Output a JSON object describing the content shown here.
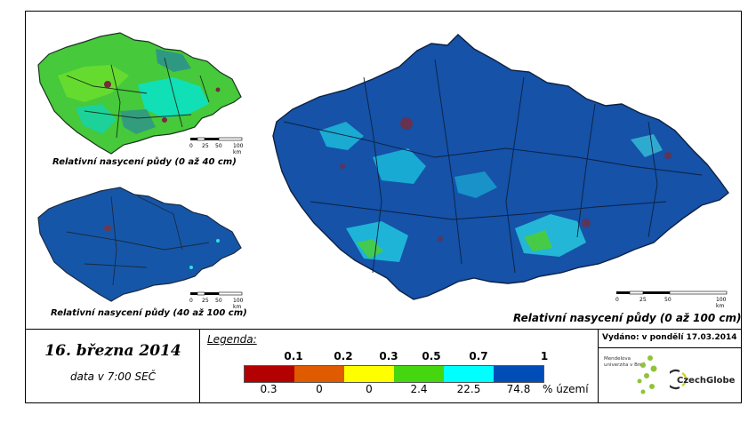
{
  "maps": {
    "small_top": {
      "caption": "Relativní nasycení půdy (0 až 40 cm)"
    },
    "small_bottom": {
      "caption": "Relativní nasycení půdy (40 až 100 cm)"
    },
    "large": {
      "caption": "Relativní nasycení půdy (0 až 100 cm)"
    },
    "scalebar": {
      "ticks": [
        "0",
        "25",
        "50",
        "100 km"
      ]
    }
  },
  "footer": {
    "date": "16. března 2014",
    "time": "data v 7:00 SEČ",
    "legend_title": "Legenda:",
    "legend_thresholds": [
      "0.1",
      "0.2",
      "0.3",
      "0.5",
      "0.7",
      "1"
    ],
    "legend_percentages": [
      "0.3",
      "0",
      "0",
      "2.4",
      "22.5",
      "74.8"
    ],
    "legend_unit": "% území",
    "legend_colors": [
      "#b30000",
      "#e05a00",
      "#ffff00",
      "#44d60e",
      "#00ffff",
      "#004db8"
    ],
    "issued": "Vydáno: v pondělí 17.03.2014",
    "mendel_logo": "Mendelova univerzita v Brně",
    "czechglobe_logo": "CzechGlobe"
  }
}
